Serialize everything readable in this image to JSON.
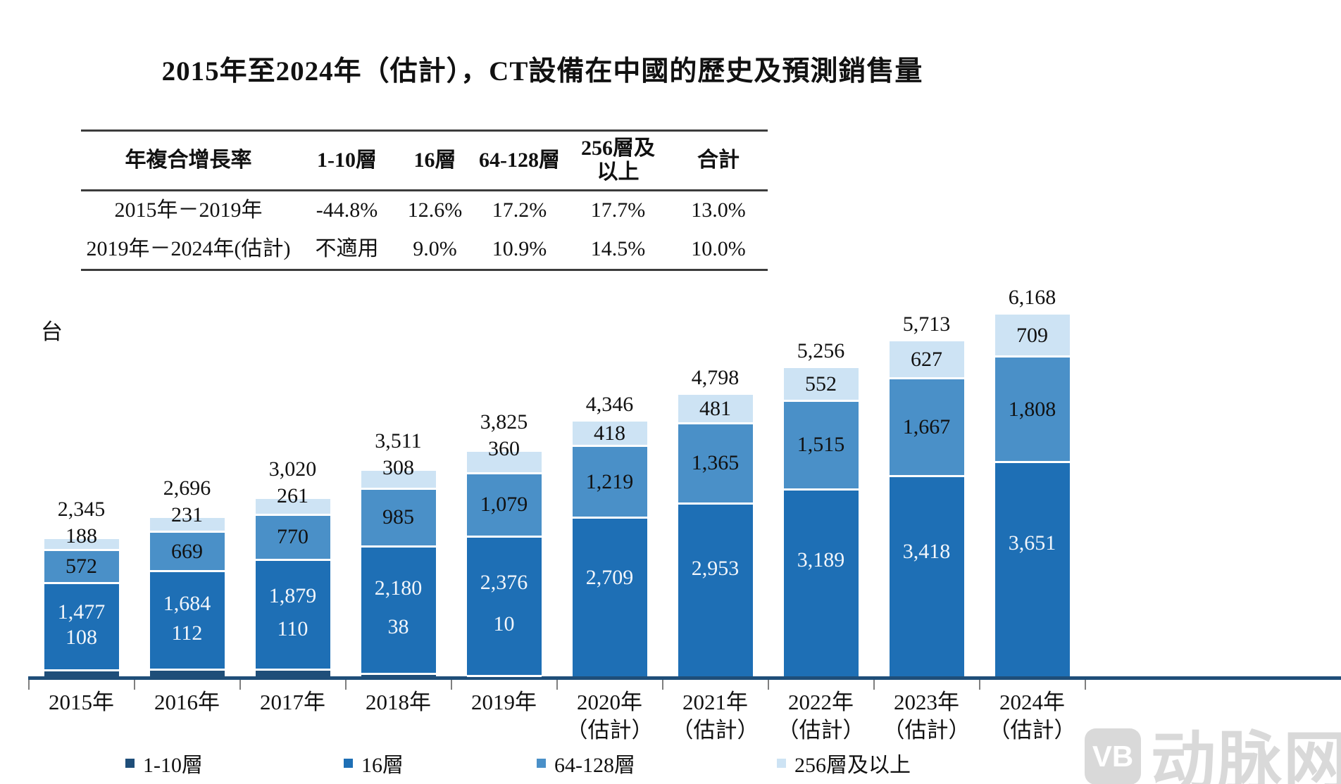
{
  "title": "2015年至2024年（估計），CT設備在中國的歷史及預測銷售量",
  "unit_label": "台",
  "table": {
    "headers": [
      "年複合增長率",
      "1-10層",
      "16層",
      "64-128層",
      "256層及\n以上",
      "合計"
    ],
    "rows": [
      {
        "label": "2015年－2019年",
        "values": [
          "-44.8%",
          "12.6%",
          "17.2%",
          "17.7%",
          "13.0%"
        ]
      },
      {
        "label": "2019年－2024年(估計)",
        "values": [
          "不適用",
          "9.0%",
          "10.9%",
          "14.5%",
          "10.0%"
        ]
      }
    ]
  },
  "chart_data": {
    "type": "bar",
    "stacked": true,
    "title": "2015年至2024年（估計），CT設備在中國的歷史及預測銷售量",
    "ylabel": "台",
    "legend_position": "bottom",
    "grid": false,
    "categories": [
      "2015年",
      "2016年",
      "2017年",
      "2018年",
      "2019年",
      "2020年\n（估計）",
      "2021年\n（估計）",
      "2022年\n（估計）",
      "2023年\n（估計）",
      "2024年\n（估計）"
    ],
    "series": [
      {
        "name": "1-10層",
        "color": "#1F4E79",
        "values": [
          108,
          112,
          110,
          38,
          10,
          0,
          0,
          0,
          0,
          0
        ]
      },
      {
        "name": "16層",
        "color": "#1E6FB5",
        "values": [
          1477,
          1684,
          1879,
          2180,
          2376,
          2709,
          2953,
          3189,
          3418,
          3651
        ]
      },
      {
        "name": "64-128層",
        "color": "#4A90C8",
        "values": [
          572,
          669,
          770,
          985,
          1079,
          1219,
          1365,
          1515,
          1667,
          1808
        ]
      },
      {
        "name": "256層及以上",
        "color": "#CDE3F4",
        "values": [
          188,
          231,
          261,
          308,
          360,
          418,
          481,
          552,
          627,
          709
        ]
      }
    ],
    "totals": [
      2345,
      2696,
      3020,
      3511,
      3825,
      4346,
      4798,
      5256,
      5713,
      6168
    ]
  },
  "legend": [
    {
      "label": "1-10層",
      "color": "#1F4E79"
    },
    {
      "label": "16層",
      "color": "#1E6FB5"
    },
    {
      "label": "64-128層",
      "color": "#4A90C8"
    },
    {
      "label": "256層及以上",
      "color": "#CDE3F4"
    }
  ],
  "colors": {
    "axis": "#1F4E79",
    "watermark": "#D9D9D9"
  },
  "watermark": {
    "logo": "VB",
    "text": "动脉网"
  }
}
